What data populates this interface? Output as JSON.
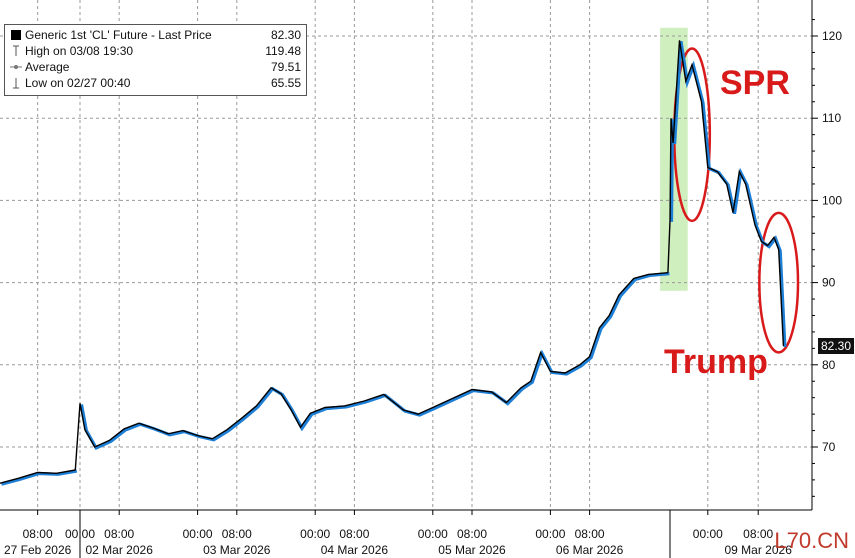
{
  "legend": {
    "series_name": "Generic 1st 'CL' Future - Last Price",
    "series_value": "82.30",
    "high_label": "High on 03/08 19:30",
    "high_value": "119.48",
    "avg_label": "Average",
    "avg_value": "79.51",
    "low_label": "Low on 02/27 00:40",
    "low_value": "65.55"
  },
  "annotations": {
    "spr": "SPR",
    "trump": "Trump",
    "last_price_tag": "82.30"
  },
  "watermark": "L70.CN",
  "colors": {
    "price_line": "#000000",
    "price_shadow": "#1e7fd6",
    "highlight": "#c8ecb4",
    "annotation": "#d81a1a",
    "grid": "#9a9a9a"
  },
  "chart_data": {
    "type": "line",
    "title": "",
    "xlabel": "",
    "ylabel": "",
    "ylim": [
      63,
      124
    ],
    "yticks": [
      70,
      80,
      90,
      100,
      110,
      120
    ],
    "grid": true,
    "x_tick_labels": [
      {
        "date": "2026-02-27 08:00",
        "top": "08:00",
        "bottom": "27 Feb 2026"
      },
      {
        "date": "2026-03-02 00:00",
        "top": "00:00",
        "bottom": ""
      },
      {
        "date": "2026-03-02 08:00",
        "top": "08:00",
        "bottom": "02 Mar 2026"
      },
      {
        "date": "2026-03-03 00:00",
        "top": "00:00",
        "bottom": ""
      },
      {
        "date": "2026-03-03 08:00",
        "top": "08:00",
        "bottom": "03 Mar 2026"
      },
      {
        "date": "2026-03-04 00:00",
        "top": "00:00",
        "bottom": ""
      },
      {
        "date": "2026-03-04 08:00",
        "top": "08:00",
        "bottom": "04 Mar 2026"
      },
      {
        "date": "2026-03-05 00:00",
        "top": "00:00",
        "bottom": ""
      },
      {
        "date": "2026-03-05 08:00",
        "top": "08:00",
        "bottom": "05 Mar 2026"
      },
      {
        "date": "2026-03-06 00:00",
        "top": "00:00",
        "bottom": ""
      },
      {
        "date": "2026-03-06 08:00",
        "top": "08:00",
        "bottom": "06 Mar 2026"
      },
      {
        "date": "2026-03-09 00:00",
        "top": "00:00",
        "bottom": ""
      },
      {
        "date": "2026-03-09 08:00",
        "top": "08:00",
        "bottom": "09 Mar 2026"
      }
    ],
    "series": [
      {
        "name": "Generic 1st 'CL' Future - Last Price",
        "points": [
          [
            "2026-02-27 00:00",
            65.6
          ],
          [
            "2026-02-27 04:00",
            66.2
          ],
          [
            "2026-02-27 08:00",
            66.9
          ],
          [
            "2026-02-27 12:00",
            66.8
          ],
          [
            "2026-02-27 16:00",
            67.2
          ],
          [
            "2026-03-02 00:00",
            75.3
          ],
          [
            "2026-03-02 01:00",
            72.1
          ],
          [
            "2026-03-02 03:00",
            70.0
          ],
          [
            "2026-03-02 06:00",
            70.8
          ],
          [
            "2026-03-02 09:00",
            72.2
          ],
          [
            "2026-03-02 12:00",
            72.9
          ],
          [
            "2026-03-02 15:00",
            72.3
          ],
          [
            "2026-03-02 18:00",
            71.6
          ],
          [
            "2026-03-02 21:00",
            72.0
          ],
          [
            "2026-03-03 00:00",
            71.4
          ],
          [
            "2026-03-03 03:00",
            71.0
          ],
          [
            "2026-03-03 06:00",
            72.1
          ],
          [
            "2026-03-03 09:00",
            73.5
          ],
          [
            "2026-03-03 12:00",
            75.0
          ],
          [
            "2026-03-03 15:00",
            77.2
          ],
          [
            "2026-03-03 17:00",
            76.5
          ],
          [
            "2026-03-03 19:00",
            74.6
          ],
          [
            "2026-03-03 21:00",
            72.4
          ],
          [
            "2026-03-03 23:00",
            74.1
          ],
          [
            "2026-03-04 02:00",
            74.8
          ],
          [
            "2026-03-04 06:00",
            75.0
          ],
          [
            "2026-03-04 10:00",
            75.6
          ],
          [
            "2026-03-04 14:00",
            76.4
          ],
          [
            "2026-03-04 18:00",
            74.5
          ],
          [
            "2026-03-04 21:00",
            74.0
          ],
          [
            "2026-03-05 00:00",
            74.8
          ],
          [
            "2026-03-05 04:00",
            75.9
          ],
          [
            "2026-03-05 08:00",
            77.0
          ],
          [
            "2026-03-05 12:00",
            76.7
          ],
          [
            "2026-03-05 15:00",
            75.4
          ],
          [
            "2026-03-05 18:00",
            77.2
          ],
          [
            "2026-03-05 20:00",
            78.0
          ],
          [
            "2026-03-05 22:00",
            81.5
          ],
          [
            "2026-03-06 00:00",
            79.2
          ],
          [
            "2026-03-06 03:00",
            79.0
          ],
          [
            "2026-03-06 06:00",
            80.0
          ],
          [
            "2026-03-06 08:00",
            81.0
          ],
          [
            "2026-03-06 10:00",
            84.5
          ],
          [
            "2026-03-06 12:00",
            86.0
          ],
          [
            "2026-03-06 14:00",
            88.5
          ],
          [
            "2026-03-06 17:00",
            90.5
          ],
          [
            "2026-03-06 20:00",
            91.0
          ],
          [
            "2026-03-06 23:59",
            91.2
          ],
          [
            "2026-03-08 18:00",
            97.5
          ],
          [
            "2026-03-08 18:10",
            110.0
          ],
          [
            "2026-03-08 18:30",
            107.0
          ],
          [
            "2026-03-08 19:30",
            119.48
          ],
          [
            "2026-03-08 20:30",
            114.5
          ],
          [
            "2026-03-08 21:30",
            116.5
          ],
          [
            "2026-03-08 23:00",
            112.0
          ],
          [
            "2026-03-09 00:00",
            104.0
          ],
          [
            "2026-03-09 01:30",
            103.5
          ],
          [
            "2026-03-09 03:00",
            102.0
          ],
          [
            "2026-03-09 04:00",
            98.5
          ],
          [
            "2026-03-09 05:00",
            103.5
          ],
          [
            "2026-03-09 06:00",
            102.0
          ],
          [
            "2026-03-09 07:30",
            97.0
          ],
          [
            "2026-03-09 08:30",
            95.0
          ],
          [
            "2026-03-09 09:30",
            94.5
          ],
          [
            "2026-03-09 10:30",
            95.5
          ],
          [
            "2026-03-09 11:15",
            94.0
          ],
          [
            "2026-03-09 12:00",
            82.3
          ]
        ]
      }
    ],
    "highlight_band": {
      "from": "2026-03-06 23:00",
      "to": "2026-03-08 20:30",
      "ymin": 89,
      "ymax": 121
    },
    "ellipses": [
      {
        "label": "SPR",
        "x_from": "2026-03-08 19:00",
        "x_to": "2026-03-09 00:00",
        "ymin": 98,
        "ymax": 118
      },
      {
        "label": "Trump",
        "x_from": "2026-03-09 08:30",
        "x_to": "2026-03-09 14:00",
        "ymin": 82,
        "ymax": 98
      }
    ]
  }
}
